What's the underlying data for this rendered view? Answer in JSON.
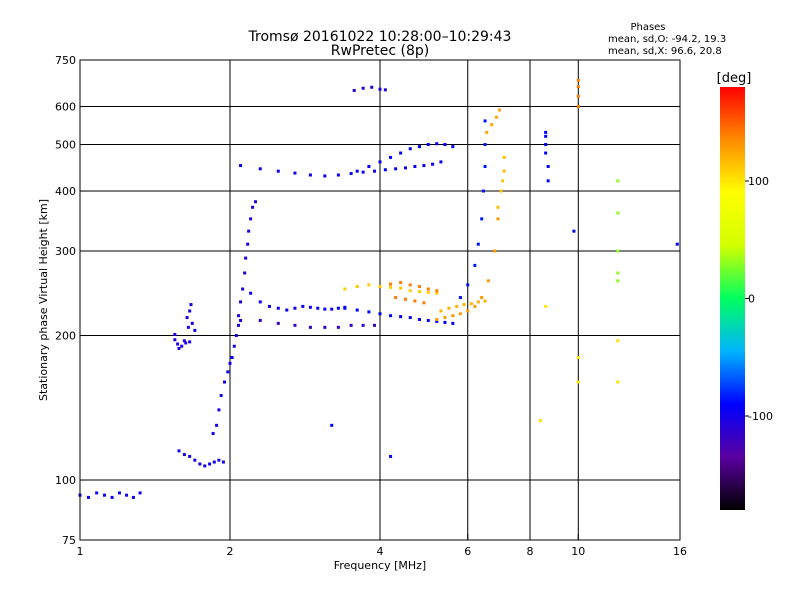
{
  "chart_data": {
    "type": "scatter",
    "title": "Tromsø 20161022 10:28:00–10:29:43",
    "subtitle": "RwPretec (8p)",
    "info": {
      "heading": "Phases",
      "line_o": "mean, sd,O: -94.2, 19.3",
      "line_x": "mean, sd,X:  96.6, 20.8"
    },
    "xlabel": "Frequency [MHz]",
    "ylabel": "Stationary phase Virtual Height [km]",
    "x_scale": "log",
    "y_scale": "log",
    "xlim": [
      1,
      16
    ],
    "ylim": [
      75,
      750
    ],
    "x_ticks": [
      1,
      2,
      4,
      6,
      8,
      10,
      16
    ],
    "x_tick_labels": [
      "1",
      "2",
      "4",
      "6",
      "8",
      "10",
      "16"
    ],
    "x_grid": [
      2,
      4,
      6,
      8,
      10
    ],
    "y_ticks": [
      75,
      100,
      200,
      300,
      400,
      500,
      600,
      750
    ],
    "y_tick_labels": [
      "75",
      "100",
      "200",
      "300",
      "400",
      "500",
      "600",
      "750"
    ],
    "y_grid": [
      100,
      200,
      300,
      400,
      500,
      600
    ],
    "grid": true,
    "colorbar": {
      "label": "[deg]",
      "range": [
        -180,
        180
      ],
      "ticks": [
        100,
        0,
        -100
      ],
      "tick_labels": [
        "100",
        "0",
        "-100"
      ],
      "colors": [
        "#000000",
        "#5a00a0",
        "#0000ff",
        "#00b4ff",
        "#00ff60",
        "#d2ff00",
        "#ffff00",
        "#ff8c00",
        "#ff0000"
      ]
    },
    "series": [
      {
        "x": [
          1.0,
          1.04,
          1.08,
          1.12,
          1.16,
          1.2,
          1.24,
          1.28,
          1.32
        ],
        "y": [
          93,
          92,
          94,
          93,
          92,
          94,
          93,
          92,
          94
        ],
        "c": -95
      },
      {
        "x": [
          1.55,
          1.57,
          1.6,
          1.63,
          1.66,
          1.55,
          1.58,
          1.62
        ],
        "y": [
          196,
          192,
          190,
          193,
          194,
          201,
          188,
          195
        ],
        "c": -105
      },
      {
        "x": [
          1.64,
          1.66,
          1.68,
          1.7,
          1.67,
          1.65
        ],
        "y": [
          218,
          225,
          212,
          205,
          232,
          208
        ],
        "c": -100
      },
      {
        "x": [
          1.58,
          1.62,
          1.66,
          1.7,
          1.74,
          1.78,
          1.82,
          1.86,
          1.9,
          1.94
        ],
        "y": [
          115,
          113,
          112,
          110,
          108,
          107,
          108,
          109,
          110,
          109
        ],
        "c": -100
      },
      {
        "x": [
          1.85,
          1.88,
          1.9,
          1.92,
          1.95,
          1.98,
          2.0,
          2.02,
          2.04,
          2.06,
          2.08,
          2.1
        ],
        "y": [
          125,
          130,
          140,
          150,
          160,
          168,
          175,
          180,
          190,
          200,
          210,
          215
        ],
        "c": -100
      },
      {
        "x": [
          2.08,
          2.1,
          2.12,
          2.14,
          2.15,
          2.17,
          2.18,
          2.2,
          2.22,
          2.25
        ],
        "y": [
          220,
          235,
          250,
          270,
          290,
          310,
          330,
          350,
          370,
          380
        ],
        "c": -105
      },
      {
        "x": [
          2.2,
          2.3,
          2.4,
          2.5,
          2.6,
          2.7,
          2.8,
          2.9,
          3.0,
          3.1,
          3.2,
          3.3,
          3.4
        ],
        "y": [
          245,
          235,
          230,
          228,
          226,
          228,
          230,
          229,
          228,
          227,
          227,
          228,
          229
        ],
        "c": -95
      },
      {
        "x": [
          2.3,
          2.5,
          2.7,
          2.9,
          3.1,
          3.3,
          3.5,
          3.7,
          3.9
        ],
        "y": [
          215,
          212,
          210,
          208,
          208,
          208,
          210,
          210,
          210
        ],
        "c": -115
      },
      {
        "x": [
          3.4,
          3.6,
          3.8,
          4.0,
          4.2,
          4.4,
          4.6,
          4.8,
          5.0,
          5.2,
          5.4,
          5.6
        ],
        "y": [
          228,
          226,
          224,
          222,
          220,
          219,
          218,
          216,
          215,
          214,
          213,
          212
        ],
        "c": -90
      },
      {
        "x": [
          3.4,
          3.6,
          3.8,
          4.0,
          4.2,
          4.4,
          4.6,
          4.8,
          5.0,
          5.2
        ],
        "y": [
          250,
          253,
          255,
          253,
          252,
          251,
          248,
          247,
          246,
          245
        ],
        "c": 110
      },
      {
        "x": [
          4.2,
          4.4,
          4.6,
          4.8,
          5.0,
          5.2,
          4.3,
          4.5,
          4.7,
          4.9
        ],
        "y": [
          256,
          258,
          255,
          253,
          250,
          248,
          240,
          238,
          236,
          234
        ],
        "c": 140
      },
      {
        "x": [
          5.3,
          5.5,
          5.7,
          5.9,
          6.1,
          6.3,
          6.5
        ],
        "y": [
          225,
          228,
          230,
          232,
          233,
          235,
          236
        ],
        "c": 120
      },
      {
        "x": [
          5.2,
          5.4,
          5.6,
          5.8,
          6.0,
          6.2,
          6.4,
          6.6,
          6.8,
          6.9
        ],
        "y": [
          216,
          218,
          220,
          222,
          225,
          230,
          240,
          260,
          300,
          350
        ],
        "c": 130
      },
      {
        "x": [
          6.9,
          7.0,
          7.05,
          7.1,
          7.1
        ],
        "y": [
          370,
          400,
          420,
          440,
          470
        ],
        "c": 115
      },
      {
        "x": [
          5.8,
          6.0,
          6.2,
          6.3,
          6.4,
          6.45,
          6.5,
          6.5,
          6.5
        ],
        "y": [
          240,
          255,
          280,
          310,
          350,
          400,
          450,
          500,
          560
        ],
        "c": -85
      },
      {
        "x": [
          6.55,
          6.7,
          6.85,
          6.95
        ],
        "y": [
          530,
          550,
          570,
          590
        ],
        "c": 125
      },
      {
        "x": [
          2.1,
          2.3,
          2.5,
          2.7,
          2.9,
          3.1,
          3.3,
          3.5,
          3.7,
          3.9,
          4.1,
          4.3,
          4.5,
          4.7,
          4.9,
          5.1,
          5.3
        ],
        "y": [
          452,
          445,
          440,
          436,
          432,
          430,
          432,
          435,
          438,
          440,
          443,
          445,
          447,
          450,
          452,
          455,
          460
        ],
        "c": -95
      },
      {
        "x": [
          3.6,
          3.8,
          4.0,
          4.2,
          4.4,
          4.6,
          4.8,
          5.0,
          5.2,
          5.4,
          5.6
        ],
        "y": [
          440,
          450,
          460,
          470,
          480,
          490,
          495,
          500,
          502,
          500,
          495
        ],
        "c": -90
      },
      {
        "x": [
          3.55,
          3.7,
          3.85,
          4.0,
          4.1
        ],
        "y": [
          648,
          655,
          658,
          652,
          650
        ],
        "c": -110
      },
      {
        "x": [
          8.6,
          8.6,
          8.6,
          8.6,
          8.7,
          8.7
        ],
        "y": [
          530,
          520,
          500,
          480,
          450,
          420
        ],
        "c": -90
      },
      {
        "x": [
          10.0,
          10.0,
          10.0,
          10.0
        ],
        "y": [
          680,
          660,
          630,
          600
        ],
        "c": 140
      },
      {
        "x": [
          12.0,
          12.0,
          12.0,
          12.0,
          12.0
        ],
        "y": [
          420,
          360,
          300,
          270,
          260
        ],
        "c": 30
      },
      {
        "x": [
          8.4,
          8.6,
          10.0,
          10.0,
          12.0,
          12.0
        ],
        "y": [
          133,
          230,
          180,
          160,
          195,
          160
        ],
        "c": 100
      },
      {
        "x": [
          15.8,
          9.8,
          3.2,
          4.2
        ],
        "y": [
          310,
          330,
          130,
          112
        ],
        "c": -90
      }
    ]
  }
}
